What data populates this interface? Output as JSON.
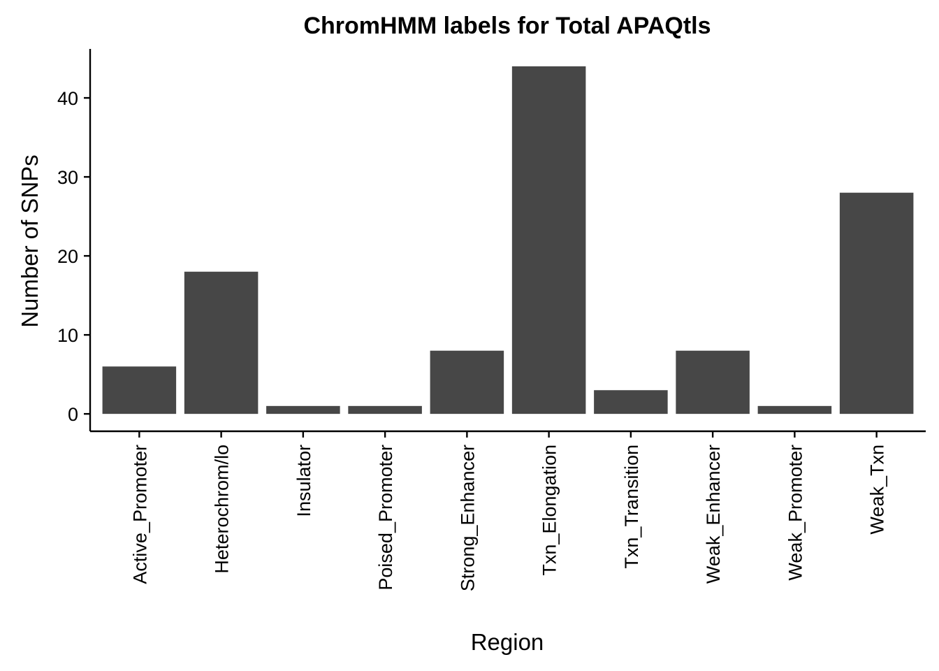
{
  "chart_data": {
    "type": "bar",
    "title": "ChromHMM labels for Total APAQtls",
    "xlabel": "Region",
    "ylabel": "Number of SNPs",
    "categories": [
      "Active_Promoter",
      "Heterochrom/lo",
      "Insulator",
      "Poised_Promoter",
      "Strong_Enhancer",
      "Txn_Elongation",
      "Txn_Transition",
      "Weak_Enhancer",
      "Weak_Promoter",
      "Weak_Txn"
    ],
    "values": [
      6,
      18,
      1,
      1,
      8,
      44,
      3,
      8,
      1,
      28
    ],
    "ylim": [
      -2.2,
      46.2
    ],
    "yticks": [
      0,
      10,
      20,
      30,
      40
    ],
    "grid": false,
    "legend": "none",
    "bar_color": "#474747",
    "axis_color": "#000000"
  }
}
